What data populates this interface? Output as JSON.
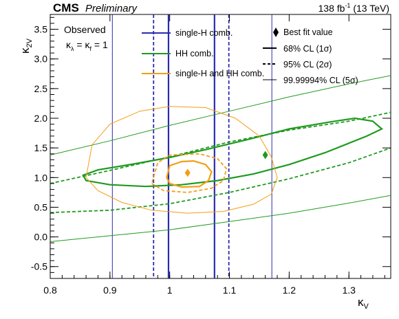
{
  "header": {
    "experiment": "CMS",
    "status": "Preliminary",
    "lumi_value": "138 fb",
    "lumi_exp": "-1",
    "energy": " (13 TeV)"
  },
  "annotation": {
    "observed": "Observed",
    "kappa_line": "κ",
    "kappa_sub1": "λ",
    "kappa_eq": " = κ",
    "kappa_sub2": "f",
    "kappa_val": " = 1"
  },
  "legend": {
    "single_h": "single-H comb.",
    "hh": "HH comb.",
    "combined": "single-H and HH comb.",
    "best_fit": "Best fit value",
    "cl68": "68% CL (1σ)",
    "cl95": "95% CL (2σ)",
    "cl5s": "99.99994% CL (5σ)"
  },
  "colors": {
    "single_h": "#2a2ab0",
    "hh": "#1f9a1f",
    "combined": "#f29e12"
  },
  "chart_data": {
    "type": "line",
    "title": "",
    "xlabel": "κ",
    "xlabel_sub": "V",
    "ylabel": "κ",
    "ylabel_sub": "2V",
    "xlim": [
      0.8,
      1.37
    ],
    "ylim": [
      -0.7,
      3.75
    ],
    "xticks": [
      "0.8",
      "0.9",
      "1",
      "1.1",
      "1.2",
      "1.3"
    ],
    "yticks": [
      "-0.5",
      "0.0",
      "0.5",
      "1.0",
      "1.5",
      "2.0",
      "2.5",
      "3.0",
      "3.5"
    ],
    "xtick_values": [
      0.8,
      0.9,
      1.0,
      1.1,
      1.2,
      1.3
    ],
    "ytick_values": [
      -0.5,
      0.0,
      0.5,
      1.0,
      1.5,
      2.0,
      2.5,
      3.0,
      3.5
    ],
    "series": [
      {
        "name": "single-H comb.",
        "contours": [
          {
            "level": "1σ",
            "style": "solid",
            "x_values": [
              0.998,
              1.075
            ]
          },
          {
            "level": "2σ",
            "style": "dashed",
            "x_values": [
              0.973,
              1.099
            ]
          },
          {
            "level": "5σ",
            "style": "thin",
            "x_values": [
              0.904,
              1.171
            ]
          }
        ]
      },
      {
        "name": "HH comb.",
        "best_fit": [
          1.16,
          1.38
        ],
        "contours": [
          {
            "level": "1σ",
            "style": "solid",
            "points": [
              [
                0.855,
                1.04
              ],
              [
                0.86,
                0.95
              ],
              [
                0.9,
                0.88
              ],
              [
                0.96,
                0.85
              ],
              [
                1.02,
                0.88
              ],
              [
                1.08,
                0.95
              ],
              [
                1.14,
                1.06
              ],
              [
                1.2,
                1.22
              ],
              [
                1.26,
                1.42
              ],
              [
                1.3,
                1.58
              ],
              [
                1.33,
                1.7
              ],
              [
                1.355,
                1.82
              ],
              [
                1.34,
                1.95
              ],
              [
                1.31,
                2.0
              ],
              [
                1.27,
                1.94
              ],
              [
                1.2,
                1.82
              ],
              [
                1.13,
                1.64
              ],
              [
                1.06,
                1.47
              ],
              [
                1.0,
                1.34
              ],
              [
                0.94,
                1.23
              ],
              [
                0.88,
                1.13
              ],
              [
                0.855,
                1.04
              ]
            ]
          },
          {
            "level": "2σ",
            "style": "dashed",
            "lines": [
              [
                [
                  0.8,
                  0.9
                ],
                [
                  0.9,
                  1.12
                ],
                [
                  1.0,
                  1.35
                ],
                [
                  1.1,
                  1.6
                ],
                [
                  1.2,
                  1.8
                ],
                [
                  1.3,
                  1.95
                ],
                [
                  1.37,
                  2.1
                ]
              ],
              [
                [
                  0.8,
                  0.41
                ],
                [
                  0.9,
                  0.45
                ],
                [
                  1.0,
                  0.56
                ],
                [
                  1.1,
                  0.75
                ],
                [
                  1.2,
                  0.98
                ],
                [
                  1.3,
                  1.25
                ],
                [
                  1.37,
                  1.5
                ]
              ]
            ]
          },
          {
            "level": "5σ",
            "style": "thin",
            "lines": [
              [
                [
                  0.8,
                  1.38
                ],
                [
                  0.9,
                  1.62
                ],
                [
                  1.0,
                  1.88
                ],
                [
                  1.1,
                  2.12
                ],
                [
                  1.2,
                  2.36
                ],
                [
                  1.3,
                  2.58
                ],
                [
                  1.37,
                  2.72
                ]
              ],
              [
                [
                  0.8,
                  -0.08
                ],
                [
                  0.9,
                  0.02
                ],
                [
                  1.0,
                  0.12
                ],
                [
                  1.1,
                  0.26
                ],
                [
                  1.2,
                  0.4
                ],
                [
                  1.3,
                  0.57
                ],
                [
                  1.37,
                  0.7
                ]
              ]
            ]
          }
        ]
      },
      {
        "name": "single-H and HH comb.",
        "best_fit": [
          1.03,
          1.08
        ],
        "contours": [
          {
            "level": "1σ",
            "style": "solid",
            "points": [
              [
                0.995,
                1.0
              ],
              [
                1.0,
                0.9
              ],
              [
                1.02,
                0.84
              ],
              [
                1.05,
                0.85
              ],
              [
                1.065,
                0.95
              ],
              [
                1.07,
                1.1
              ],
              [
                1.06,
                1.22
              ],
              [
                1.04,
                1.28
              ],
              [
                1.02,
                1.27
              ],
              [
                1.0,
                1.2
              ],
              [
                0.995,
                1.0
              ]
            ]
          },
          {
            "level": "2σ",
            "style": "dashed",
            "points": [
              [
                0.97,
                0.9
              ],
              [
                0.99,
                0.78
              ],
              [
                1.03,
                0.75
              ],
              [
                1.07,
                0.82
              ],
              [
                1.09,
                0.95
              ],
              [
                1.095,
                1.15
              ],
              [
                1.08,
                1.32
              ],
              [
                1.05,
                1.4
              ],
              [
                1.0,
                1.38
              ],
              [
                0.98,
                1.25
              ],
              [
                0.97,
                0.9
              ]
            ]
          },
          {
            "level": "5σ",
            "style": "thin",
            "points": [
              [
                0.86,
                1.0
              ],
              [
                0.88,
                0.78
              ],
              [
                0.92,
                0.58
              ],
              [
                0.97,
                0.45
              ],
              [
                1.03,
                0.4
              ],
              [
                1.09,
                0.43
              ],
              [
                1.14,
                0.55
              ],
              [
                1.17,
                0.72
              ],
              [
                1.18,
                1.0
              ],
              [
                1.17,
                1.35
              ],
              [
                1.15,
                1.7
              ],
              [
                1.11,
                2.0
              ],
              [
                1.06,
                2.18
              ],
              [
                1.0,
                2.2
              ],
              [
                0.95,
                2.12
              ],
              [
                0.9,
                1.9
              ],
              [
                0.87,
                1.55
              ],
              [
                0.86,
                1.0
              ]
            ]
          }
        ]
      }
    ],
    "legend_position": "top"
  }
}
